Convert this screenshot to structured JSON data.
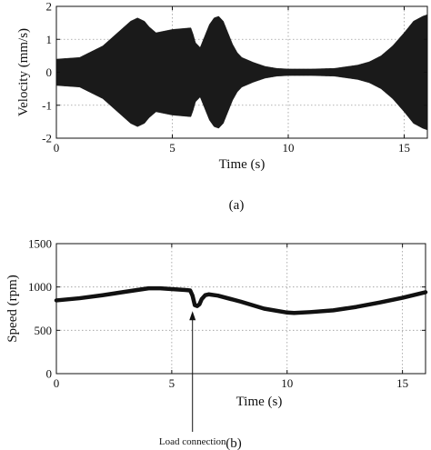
{
  "chart_data": [
    {
      "type": "area",
      "panel": "a",
      "caption": "(a)",
      "xlabel": "Time (s)",
      "ylabel": "Velocity (mm/s)",
      "xlim": [
        0,
        16
      ],
      "ylim": [
        -2,
        2
      ],
      "xticks": [
        0,
        5,
        10,
        15
      ],
      "yticks": [
        -2,
        -1,
        0,
        1,
        2
      ],
      "grid": true,
      "series": [
        {
          "description": "oscillating velocity amplitude envelope (symmetric about 0)",
          "x": [
            0,
            1.0,
            2.0,
            2.8,
            3.2,
            3.5,
            3.8,
            4.0,
            4.3,
            5.0,
            5.8,
            5.9,
            6.0,
            6.2,
            6.4,
            6.6,
            6.8,
            7.0,
            7.2,
            7.4,
            7.6,
            7.8,
            8.0,
            8.5,
            9.0,
            9.5,
            10.0,
            11.0,
            12.0,
            13.0,
            13.5,
            14.0,
            14.5,
            15.0,
            15.4,
            15.8,
            16.0
          ],
          "amplitude": [
            0.4,
            0.45,
            0.8,
            1.3,
            1.55,
            1.65,
            1.55,
            1.38,
            1.2,
            1.3,
            1.35,
            1.15,
            0.9,
            0.75,
            1.1,
            1.45,
            1.65,
            1.7,
            1.55,
            1.2,
            0.85,
            0.6,
            0.45,
            0.3,
            0.18,
            0.12,
            0.1,
            0.1,
            0.12,
            0.22,
            0.32,
            0.5,
            0.8,
            1.2,
            1.55,
            1.7,
            1.75
          ]
        }
      ]
    },
    {
      "type": "line",
      "panel": "b",
      "caption": "(b)",
      "xlabel": "Time (s)",
      "ylabel": "Speed (rpm)",
      "xlim": [
        0,
        16
      ],
      "ylim": [
        0,
        1500
      ],
      "xticks": [
        0,
        5,
        10,
        15
      ],
      "yticks": [
        0,
        500,
        1000,
        1500
      ],
      "grid": true,
      "series": [
        {
          "x": [
            0,
            1,
            2,
            3,
            4,
            4.5,
            5,
            5.6,
            5.8,
            5.9,
            6.0,
            6.1,
            6.2,
            6.3,
            6.45,
            6.6,
            7,
            8,
            9,
            10,
            10.3,
            11,
            12,
            13,
            14,
            15,
            16
          ],
          "y": [
            845,
            870,
            905,
            945,
            985,
            985,
            975,
            965,
            960,
            900,
            790,
            780,
            800,
            860,
            905,
            915,
            900,
            830,
            750,
            705,
            700,
            710,
            730,
            770,
            820,
            875,
            940
          ]
        }
      ],
      "annotations": [
        {
          "text": "Load connection",
          "x": 5.9,
          "y": 700
        }
      ]
    }
  ]
}
